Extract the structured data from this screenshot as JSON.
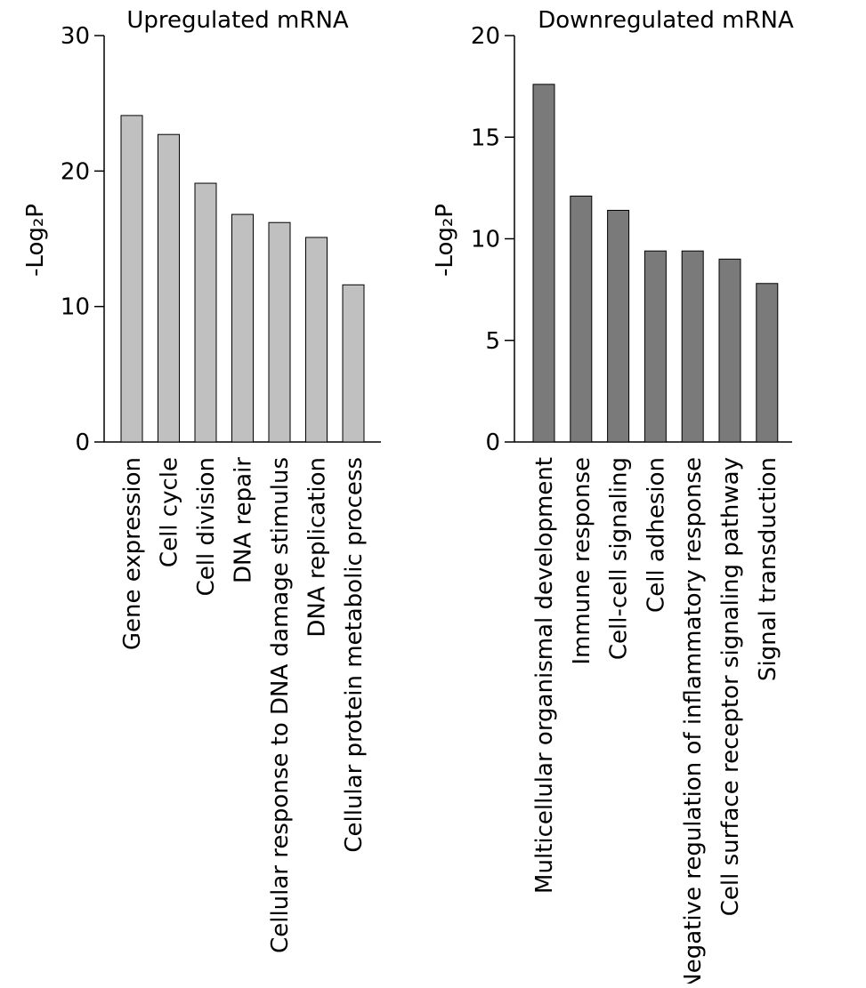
{
  "chart_data": [
    {
      "type": "bar",
      "title": "Upregulated mRNA",
      "ylabel": "-Log₂P",
      "xlabel": "",
      "categories": [
        "Gene expression",
        "Cell cycle",
        "Cell division",
        "DNA repair",
        "Cellular response to DNA damage stimulus",
        "DNA replication",
        "Cellular protein metabolic process"
      ],
      "values": [
        24.1,
        22.7,
        19.1,
        16.8,
        16.2,
        15.1,
        11.6
      ],
      "ylim": [
        0,
        30
      ],
      "yticks": [
        0,
        10,
        20,
        30
      ],
      "bar_color": "#c0c0c0",
      "grid": false
    },
    {
      "type": "bar",
      "title": "Downregulated mRNA",
      "ylabel": "-Log₂P",
      "xlabel": "",
      "categories": [
        "Multicellular organismal development",
        "Immune response",
        "Cell-cell signaling",
        "Cell adhesion",
        "Negative regulation of inflammatory response",
        "Cell surface receptor signaling pathway",
        "Signal transduction"
      ],
      "values": [
        17.6,
        12.1,
        11.4,
        9.4,
        9.4,
        9.0,
        7.8
      ],
      "ylim": [
        0,
        20
      ],
      "yticks": [
        0,
        5,
        10,
        15,
        20
      ],
      "bar_color": "#7a7a7a",
      "grid": false
    }
  ]
}
